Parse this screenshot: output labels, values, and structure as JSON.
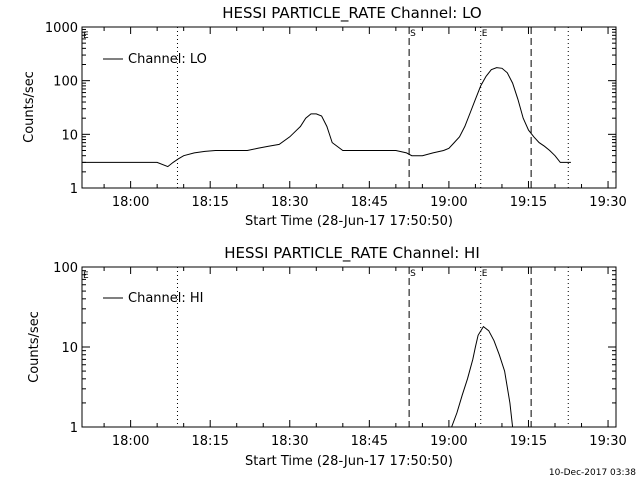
{
  "footer_timestamp": "10-Dec-2017 03:38",
  "chart_data": [
    {
      "type": "line",
      "title": "HESSI PARTICLE_RATE Channel: LO",
      "xlabel": "Start Time (28-Jun-17 17:50:50)",
      "ylabel": "Counts/sec",
      "y_scale": "log",
      "ylim": [
        1,
        1000
      ],
      "xlim": [
        "17:50:50",
        "19:31:30"
      ],
      "x_ticks": [
        "18:00",
        "18:15",
        "18:30",
        "18:45",
        "19:00",
        "19:15",
        "19:30"
      ],
      "y_ticks": [
        "1",
        "10",
        "100",
        "1000"
      ],
      "grid": false,
      "legend": {
        "position": "top-left",
        "entries": [
          "Channel: LO"
        ]
      },
      "markers": [
        {
          "time": "18:08:50",
          "style": "dotted",
          "label": ""
        },
        {
          "time": "18:52:30",
          "style": "dashed",
          "label": "S"
        },
        {
          "time": "19:06:00",
          "style": "dotted",
          "label": "E"
        },
        {
          "time": "19:15:30",
          "style": "dashed",
          "label": ""
        },
        {
          "time": "19:22:30",
          "style": "dotted",
          "label": ""
        }
      ],
      "corner_labels": [
        "E"
      ],
      "series": [
        {
          "name": "Channel: LO",
          "x": [
            "17:50:50",
            "17:52:00",
            "17:55:00",
            "17:58:00",
            "18:00:00",
            "18:03:00",
            "18:05:00",
            "18:07:00",
            "18:08:00",
            "18:09:00",
            "18:10:00",
            "18:12:00",
            "18:14:00",
            "18:16:00",
            "18:18:00",
            "18:20:00",
            "18:22:00",
            "18:24:00",
            "18:26:00",
            "18:28:00",
            "18:30:00",
            "18:32:00",
            "18:33:00",
            "18:34:00",
            "18:35:00",
            "18:36:00",
            "18:37:00",
            "18:38:00",
            "18:40:00",
            "18:42:00",
            "18:45:00",
            "18:48:00",
            "18:50:00",
            "18:52:00",
            "18:53:00",
            "18:55:00",
            "18:57:00",
            "18:59:00",
            "19:00:00",
            "19:01:00",
            "19:02:00",
            "19:03:00",
            "19:04:00",
            "19:05:00",
            "19:06:00",
            "19:07:00",
            "19:08:00",
            "19:09:00",
            "19:10:00",
            "19:11:00",
            "19:12:00",
            "19:13:00",
            "19:14:00",
            "19:15:00",
            "19:16:00",
            "19:17:00",
            "19:18:00",
            "19:19:00",
            "19:20:00",
            "19:21:00",
            "19:22:00",
            "19:23:00"
          ],
          "values": [
            3,
            3,
            3,
            3,
            3,
            3,
            3,
            2.5,
            3,
            3.5,
            4,
            4.5,
            4.8,
            5,
            5,
            5,
            5,
            5.5,
            6,
            6.5,
            9,
            14,
            20,
            24,
            24,
            22,
            14,
            7,
            5,
            5,
            5,
            5,
            5,
            4.5,
            4,
            4,
            4.5,
            5,
            5.5,
            7,
            9,
            14,
            25,
            45,
            80,
            120,
            160,
            175,
            170,
            140,
            90,
            45,
            20,
            12,
            9,
            7,
            6,
            5,
            4,
            3,
            3,
            3
          ]
        }
      ]
    },
    {
      "type": "line",
      "title": "HESSI PARTICLE_RATE Channel: HI",
      "xlabel": "Start Time (28-Jun-17 17:50:50)",
      "ylabel": "Counts/sec",
      "y_scale": "log",
      "ylim": [
        1,
        100
      ],
      "xlim": [
        "17:50:50",
        "19:31:30"
      ],
      "x_ticks": [
        "18:00",
        "18:15",
        "18:30",
        "18:45",
        "19:00",
        "19:15",
        "19:30"
      ],
      "y_ticks": [
        "1",
        "10",
        "100"
      ],
      "grid": false,
      "legend": {
        "position": "top-left",
        "entries": [
          "Channel: HI"
        ]
      },
      "markers": [
        {
          "time": "18:08:50",
          "style": "dotted",
          "label": ""
        },
        {
          "time": "18:52:30",
          "style": "dashed",
          "label": "S"
        },
        {
          "time": "19:06:00",
          "style": "dotted",
          "label": "E"
        },
        {
          "time": "19:15:30",
          "style": "dashed",
          "label": ""
        },
        {
          "time": "19:22:30",
          "style": "dotted",
          "label": ""
        }
      ],
      "corner_labels": [
        "E"
      ],
      "series": [
        {
          "name": "Channel: HI",
          "x": [
            "19:00:30",
            "19:01:30",
            "19:02:30",
            "19:03:30",
            "19:04:30",
            "19:05:00",
            "19:05:30",
            "19:06:30",
            "19:07:30",
            "19:08:30",
            "19:09:30",
            "19:10:30",
            "19:11:30",
            "19:12:00"
          ],
          "values": [
            1,
            1.5,
            2.5,
            4,
            7,
            10,
            14,
            18,
            16,
            12,
            8,
            5,
            2,
            1
          ]
        }
      ]
    }
  ]
}
